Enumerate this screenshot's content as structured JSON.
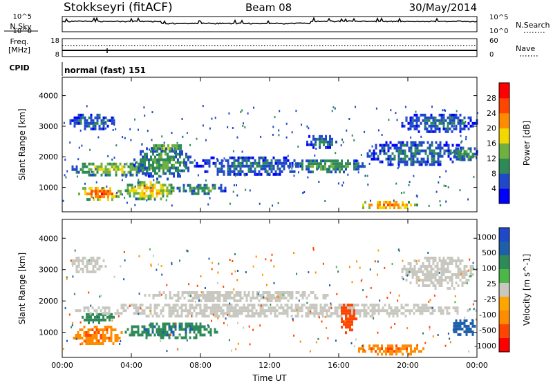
{
  "header": {
    "station": "Stokkseyri (fitACF)",
    "beam": "Beam 08",
    "date": "30/May/2014"
  },
  "nsky_panel": {
    "left_label": "N.Sky",
    "y_ticks_right": [
      "10^5",
      "10^0"
    ],
    "right_label": "N.Search"
  },
  "freq_panel": {
    "left_label_1": "Freq.",
    "left_label_2": "[MHz]",
    "y_ticks_left": [
      "18",
      "8"
    ],
    "y_ticks_right": [
      "60",
      "0"
    ],
    "right_label": "Nave"
  },
  "cpid": {
    "label": "CPID",
    "value": "normal (fast) 151"
  },
  "colors": {
    "power": [
      "#0000ff",
      "#1f49c8",
      "#2e8b57",
      "#70b040",
      "#f0d800",
      "#ff8c00",
      "#ff4500",
      "#ff0000"
    ],
    "velocity_pos": [
      "#1f49c8",
      "#1e5faa",
      "#2e8b57",
      "#4cb848"
    ],
    "velocity_neutral": "#c8c8c0",
    "velocity_neg": [
      "#ffa500",
      "#ff8c00",
      "#ff4500",
      "#ff0000"
    ]
  },
  "chart_data": [
    {
      "type": "heatmap",
      "name": "power",
      "ylabel": "Slant Range [km]",
      "ylim": [
        200,
        4600
      ],
      "y_ticks": [
        1000,
        2000,
        3000,
        4000
      ],
      "x_ticks": [
        "00:00",
        "04:00",
        "08:00",
        "12:00",
        "16:00",
        "20:00",
        "00:00"
      ],
      "colorbar": {
        "label": "Power [dB]",
        "ticks": [
          4,
          8,
          12,
          16,
          20,
          24,
          28
        ],
        "range": [
          0,
          32
        ]
      },
      "blobs": [
        {
          "t0": 0.8,
          "t1": 3.5,
          "r0": 600,
          "r1": 1100,
          "level": 26
        },
        {
          "t0": 0.3,
          "t1": 5.5,
          "r0": 1400,
          "r1": 1900,
          "level": 16
        },
        {
          "t0": 3.5,
          "t1": 6.5,
          "r0": 600,
          "r1": 1300,
          "level": 20
        },
        {
          "t0": 4.0,
          "t1": 7.5,
          "r0": 1300,
          "r1": 2400,
          "level": 12
        },
        {
          "t0": 5.0,
          "t1": 7.0,
          "r0": 2200,
          "r1": 2500,
          "level": 16
        },
        {
          "t0": 6.5,
          "t1": 9.5,
          "r0": 800,
          "r1": 1200,
          "level": 12
        },
        {
          "t0": 7.5,
          "t1": 14.0,
          "r0": 1400,
          "r1": 2100,
          "level": 8
        },
        {
          "t0": 13.0,
          "t1": 17.5,
          "r0": 1500,
          "r1": 2000,
          "level": 12
        },
        {
          "t0": 17.0,
          "t1": 20.5,
          "r0": 300,
          "r1": 650,
          "level": 24
        },
        {
          "t0": 17.5,
          "t1": 23.5,
          "r0": 1700,
          "r1": 2600,
          "level": 8
        },
        {
          "t0": 19.5,
          "t1": 24.0,
          "r0": 2800,
          "r1": 3500,
          "level": 8
        },
        {
          "t0": 0.3,
          "t1": 3.0,
          "r0": 2900,
          "r1": 3500,
          "level": 8
        },
        {
          "t0": 14.0,
          "t1": 16.0,
          "r0": 2300,
          "r1": 2800,
          "level": 8
        },
        {
          "t0": 22.5,
          "t1": 24.0,
          "r0": 1900,
          "r1": 2400,
          "level": 12
        }
      ]
    },
    {
      "type": "heatmap",
      "name": "velocity",
      "ylabel": "Slant Range [km]",
      "xlabel": "Time UT",
      "ylim": [
        200,
        4600
      ],
      "y_ticks": [
        1000,
        2000,
        3000,
        4000
      ],
      "x_ticks": [
        "00:00",
        "04:00",
        "08:00",
        "12:00",
        "16:00",
        "20:00",
        "00:00"
      ],
      "colorbar": {
        "label": "Velocity [m s^-1]",
        "ticks": [
          "1000",
          "500",
          "100",
          "25",
          "-25",
          "-100",
          "-500",
          "-1000"
        ]
      },
      "blobs": [
        {
          "t0": 0.5,
          "t1": 3.5,
          "r0": 600,
          "r1": 1300,
          "vel": -300
        },
        {
          "t0": 1.0,
          "t1": 3.0,
          "r0": 1300,
          "r1": 1700,
          "vel": 200
        },
        {
          "t0": 3.5,
          "t1": 9.0,
          "r0": 800,
          "r1": 1400,
          "vel": 300
        },
        {
          "t0": 0.5,
          "t1": 24.0,
          "r0": 1500,
          "r1": 2000,
          "vel": 0
        },
        {
          "t0": 4.5,
          "t1": 15.5,
          "r0": 2000,
          "r1": 2400,
          "vel": 0
        },
        {
          "t0": 17.0,
          "t1": 21.0,
          "r0": 300,
          "r1": 700,
          "vel": -300
        },
        {
          "t0": 16.0,
          "t1": 17.0,
          "r0": 1000,
          "r1": 2000,
          "vel": -700
        },
        {
          "t0": 0.3,
          "t1": 2.5,
          "r0": 2900,
          "r1": 3500,
          "vel": 0
        },
        {
          "t0": 19.5,
          "t1": 24.0,
          "r0": 2400,
          "r1": 3500,
          "vel": 0
        },
        {
          "t0": 22.5,
          "t1": 24.0,
          "r0": 900,
          "r1": 1500,
          "vel": 500
        }
      ]
    }
  ]
}
